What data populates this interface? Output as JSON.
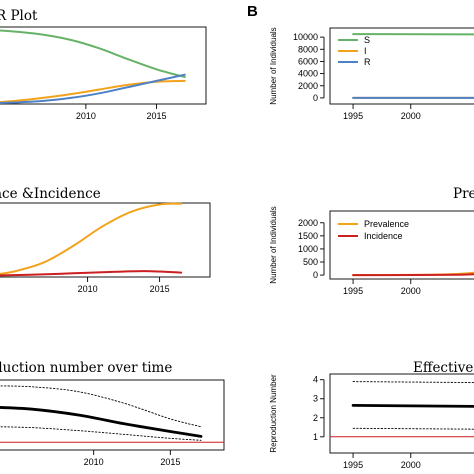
{
  "panel_labels": {
    "right": "B"
  },
  "titles": {
    "a1": "R Plot",
    "a2": "ace &Incidence",
    "a3": "duction number over time",
    "b2": "Pre",
    "b3": "Effective r"
  },
  "chart_data": [
    {
      "id": "a1",
      "type": "line",
      "title": "R Plot",
      "xlabel": "",
      "ylabel": "",
      "xlim": [
        2003.5,
        2018.5
      ],
      "ylim": [
        0,
        1
      ],
      "xticks": [
        2010,
        2015
      ],
      "series": [
        {
          "name": "",
          "color": "#66b266",
          "x": [
            2003.5,
            2005,
            2007,
            2009,
            2011,
            2013,
            2015,
            2017
          ],
          "y": [
            0.96,
            0.94,
            0.9,
            0.83,
            0.72,
            0.58,
            0.45,
            0.35
          ]
        },
        {
          "name": "",
          "color": "#f2a31d",
          "x": [
            2003.5,
            2005,
            2007,
            2009,
            2011,
            2013,
            2015,
            2017
          ],
          "y": [
            0.02,
            0.04,
            0.08,
            0.13,
            0.19,
            0.25,
            0.29,
            0.3
          ]
        },
        {
          "name": "",
          "color": "#4f81c7",
          "x": [
            2003.5,
            2005,
            2007,
            2009,
            2011,
            2013,
            2015,
            2017
          ],
          "y": [
            0.01,
            0.02,
            0.04,
            0.08,
            0.14,
            0.22,
            0.3,
            0.38
          ]
        }
      ]
    },
    {
      "id": "b1",
      "type": "line",
      "title": "",
      "xlabel": "",
      "ylabel": "Number of Individuals",
      "xlim": [
        1993,
        2006
      ],
      "ylim": [
        -1000,
        11500
      ],
      "xticks": [
        1995,
        2000
      ],
      "yticks": [
        0,
        2000,
        4000,
        6000,
        8000,
        10000
      ],
      "legend": "top-left",
      "series": [
        {
          "name": "S",
          "color": "#66b266",
          "x": [
            1995,
            2006
          ],
          "y": [
            10500,
            10450
          ]
        },
        {
          "name": "I",
          "color": "#f2a31d",
          "x": [
            1995,
            2006
          ],
          "y": [
            5,
            10
          ]
        },
        {
          "name": "R",
          "color": "#4f81c7",
          "x": [
            1995,
            2006
          ],
          "y": [
            0,
            5
          ]
        }
      ]
    },
    {
      "id": "a2",
      "type": "line",
      "title": "ace &Incidence",
      "xlabel": "",
      "ylabel": "",
      "xlim": [
        2003.5,
        2018.5
      ],
      "ylim": [
        0,
        1
      ],
      "xticks": [
        2010,
        2015
      ],
      "series": [
        {
          "name": "",
          "color": "#f2a31d",
          "x": [
            2003.5,
            2005,
            2007,
            2009,
            2011,
            2013,
            2015,
            2016.5
          ],
          "y": [
            0.03,
            0.08,
            0.2,
            0.42,
            0.68,
            0.88,
            0.98,
            0.99
          ]
        },
        {
          "name": "",
          "color": "#cc1f1f",
          "x": [
            2003.5,
            2006,
            2009,
            2012,
            2014,
            2016.5
          ],
          "y": [
            0.02,
            0.03,
            0.05,
            0.07,
            0.08,
            0.06
          ]
        }
      ]
    },
    {
      "id": "b2",
      "type": "line",
      "title": "Pre",
      "xlabel": "",
      "ylabel": "Number of Individuals",
      "xlim": [
        1993,
        2006
      ],
      "ylim": [
        -150,
        2450
      ],
      "xticks": [
        1995,
        2000
      ],
      "yticks": [
        0,
        500,
        1000,
        1500,
        2000
      ],
      "legend": "top-left",
      "series": [
        {
          "name": "Prevalence",
          "color": "#f2a31d",
          "x": [
            1995,
            2000,
            2004,
            2006
          ],
          "y": [
            0,
            5,
            40,
            110
          ]
        },
        {
          "name": "Incidence",
          "color": "#cc1f1f",
          "x": [
            1995,
            2000,
            2004,
            2006
          ],
          "y": [
            0,
            3,
            15,
            35
          ]
        }
      ]
    },
    {
      "id": "a3",
      "type": "line",
      "title": "duction number over time",
      "xlabel": "",
      "ylabel": "",
      "xlim": [
        2003.5,
        2018.5
      ],
      "ylim": [
        0.6,
        4.2
      ],
      "xticks": [
        2010,
        2015
      ],
      "series": [
        {
          "name": "",
          "color": "#000000",
          "style": "solid",
          "x": [
            2003.5,
            2006,
            2009,
            2012,
            2015,
            2017
          ],
          "y": [
            2.8,
            2.7,
            2.4,
            1.95,
            1.55,
            1.3
          ]
        },
        {
          "name": "",
          "color": "#000000",
          "style": "dotted",
          "x": [
            2003.5,
            2006,
            2009,
            2012,
            2015,
            2017
          ],
          "y": [
            3.9,
            3.85,
            3.6,
            3.0,
            2.2,
            1.8
          ]
        },
        {
          "name": "",
          "color": "#000000",
          "style": "dotted",
          "x": [
            2003.5,
            2006,
            2009,
            2012,
            2015,
            2017
          ],
          "y": [
            1.8,
            1.75,
            1.6,
            1.4,
            1.2,
            1.1
          ]
        },
        {
          "name": "",
          "color": "#cc1f1f",
          "style": "solid",
          "x": [
            2003.5,
            2018.5
          ],
          "y": [
            1,
            1
          ]
        }
      ]
    },
    {
      "id": "b3",
      "type": "line",
      "title": "Effective r",
      "xlabel": "",
      "ylabel": "Reproduction Number",
      "xlim": [
        1993,
        2006
      ],
      "ylim": [
        0.15,
        4.3
      ],
      "xticks": [
        1995,
        2000
      ],
      "yticks": [
        1,
        2,
        3,
        4
      ],
      "series": [
        {
          "name": "",
          "color": "#000000",
          "style": "solid",
          "x": [
            1995,
            2006
          ],
          "y": [
            2.65,
            2.6
          ]
        },
        {
          "name": "",
          "color": "#000000",
          "style": "dotted",
          "x": [
            1995,
            2006
          ],
          "y": [
            3.9,
            3.85
          ]
        },
        {
          "name": "",
          "color": "#000000",
          "style": "dotted",
          "x": [
            1995,
            2006
          ],
          "y": [
            1.45,
            1.4
          ]
        },
        {
          "name": "",
          "color": "#cc1f1f",
          "style": "solid",
          "x": [
            1993,
            2006
          ],
          "y": [
            1,
            1
          ]
        }
      ]
    }
  ]
}
